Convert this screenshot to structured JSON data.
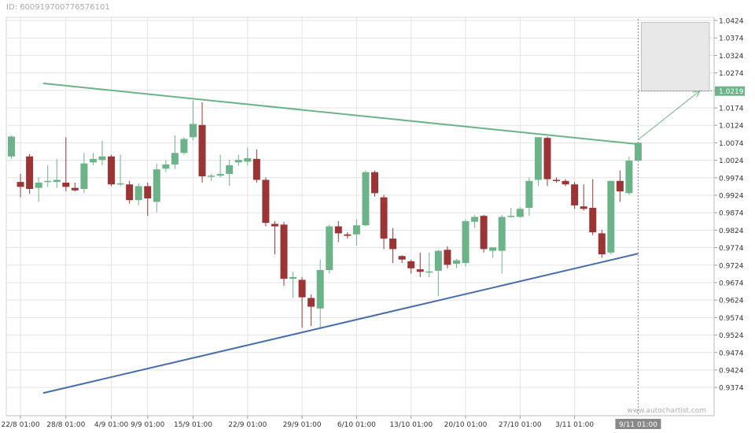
{
  "id_label": "ID: 600919700776576101",
  "watermark": "www.autochartist.com",
  "colors": {
    "up": "#6db38a",
    "down": "#9b3535",
    "resistance": "#6db38a",
    "support": "#4a6fa8",
    "forecast_box": "#e8e8e8",
    "current_price_bg": "#6db38a",
    "date_highlight_bg": "#888888"
  },
  "chart_data": {
    "type": "candlestick",
    "ylim": [
      0.9344,
      1.0424
    ],
    "y_ticks": [
      "1.0424",
      "1.0374",
      "1.0324",
      "1.0274",
      "1.0224",
      "1.0174",
      "1.0124",
      "1.0074",
      "1.0024",
      "0.9974",
      "0.9924",
      "0.9874",
      "0.9824",
      "0.9774",
      "0.9724",
      "0.9674",
      "0.9624",
      "0.9574",
      "0.9524",
      "0.9474",
      "0.9424",
      "0.9374"
    ],
    "x_labels": [
      {
        "label": "22/8 01:00",
        "i": 1
      },
      {
        "label": "28/8 01:00",
        "i": 6
      },
      {
        "label": "4/9 01:00",
        "i": 11
      },
      {
        "label": "9/9 01:00",
        "i": 15
      },
      {
        "label": "15/9 01:00",
        "i": 20
      },
      {
        "label": "22/9 01:00",
        "i": 26
      },
      {
        "label": "29/9 01:00",
        "i": 32
      },
      {
        "label": "6/10 01:00",
        "i": 38
      },
      {
        "label": "13/10 01:00",
        "i": 44
      },
      {
        "label": "20/10 01:00",
        "i": 50
      },
      {
        "label": "27/10 01:00",
        "i": 56
      },
      {
        "label": "3/11 01:00",
        "i": 62
      }
    ],
    "current_date_label": "9/11 01:00",
    "current_price_label": "1.0219",
    "candles": [
      {
        "o": 1.0035,
        "h": 1.0095,
        "l": 1.0028,
        "c": 1.0092
      },
      {
        "o": 0.9962,
        "h": 0.9985,
        "l": 0.9918,
        "c": 0.9948
      },
      {
        "o": 1.0035,
        "h": 1.0042,
        "l": 0.9928,
        "c": 0.9942
      },
      {
        "o": 0.9945,
        "h": 0.9975,
        "l": 0.9905,
        "c": 0.996
      },
      {
        "o": 0.9962,
        "h": 1.001,
        "l": 0.9948,
        "c": 0.9965
      },
      {
        "o": 0.9962,
        "h": 1.0028,
        "l": 0.9945,
        "c": 0.9968
      },
      {
        "o": 0.996,
        "h": 1.009,
        "l": 0.9935,
        "c": 0.9948
      },
      {
        "o": 0.9945,
        "h": 0.996,
        "l": 0.9935,
        "c": 0.9938
      },
      {
        "o": 0.9942,
        "h": 1.0045,
        "l": 0.993,
        "c": 1.0015
      },
      {
        "o": 1.0018,
        "h": 1.0045,
        "l": 1.001,
        "c": 1.0028
      },
      {
        "o": 1.0025,
        "h": 1.008,
        "l": 1.001,
        "c": 1.0035
      },
      {
        "o": 1.0035,
        "h": 1.004,
        "l": 0.995,
        "c": 0.9955
      },
      {
        "o": 0.9955,
        "h": 1.004,
        "l": 0.995,
        "c": 0.9958
      },
      {
        "o": 0.9955,
        "h": 0.9965,
        "l": 0.99,
        "c": 0.991
      },
      {
        "o": 0.991,
        "h": 0.9958,
        "l": 0.9895,
        "c": 0.995
      },
      {
        "o": 0.995,
        "h": 0.996,
        "l": 0.9865,
        "c": 0.9915
      },
      {
        "o": 0.9905,
        "h": 1.0015,
        "l": 0.9875,
        "c": 0.9998
      },
      {
        "o": 1.0,
        "h": 1.0025,
        "l": 0.999,
        "c": 1.0012
      },
      {
        "o": 1.0012,
        "h": 1.0095,
        "l": 1.0,
        "c": 1.0045
      },
      {
        "o": 1.0045,
        "h": 1.009,
        "l": 1.004,
        "c": 1.0085
      },
      {
        "o": 1.009,
        "h": 1.0195,
        "l": 1.008,
        "c": 1.0128
      },
      {
        "o": 1.0125,
        "h": 1.019,
        "l": 0.996,
        "c": 0.9978
      },
      {
        "o": 0.9978,
        "h": 0.9985,
        "l": 0.9965,
        "c": 0.998
      },
      {
        "o": 0.998,
        "h": 1.004,
        "l": 0.9975,
        "c": 0.9985
      },
      {
        "o": 0.9985,
        "h": 1.0025,
        "l": 0.995,
        "c": 1.001
      },
      {
        "o": 1.0018,
        "h": 1.004,
        "l": 1.0008,
        "c": 1.0025
      },
      {
        "o": 1.002,
        "h": 1.006,
        "l": 1.001,
        "c": 1.003
      },
      {
        "o": 1.0028,
        "h": 1.0055,
        "l": 0.996,
        "c": 0.9968
      },
      {
        "o": 0.9968,
        "h": 0.9975,
        "l": 0.9835,
        "c": 0.9845
      },
      {
        "o": 0.9842,
        "h": 0.985,
        "l": 0.9755,
        "c": 0.9835
      },
      {
        "o": 0.984,
        "h": 0.9848,
        "l": 0.9665,
        "c": 0.9685
      },
      {
        "o": 0.9685,
        "h": 0.9705,
        "l": 0.963,
        "c": 0.969
      },
      {
        "o": 0.9682,
        "h": 0.969,
        "l": 0.9545,
        "c": 0.9632
      },
      {
        "o": 0.963,
        "h": 0.964,
        "l": 0.955,
        "c": 0.9605
      },
      {
        "o": 0.96,
        "h": 0.974,
        "l": 0.9545,
        "c": 0.971
      },
      {
        "o": 0.971,
        "h": 0.984,
        "l": 0.97,
        "c": 0.9835
      },
      {
        "o": 0.9835,
        "h": 0.985,
        "l": 0.979,
        "c": 0.9815
      },
      {
        "o": 0.9812,
        "h": 0.9818,
        "l": 0.98,
        "c": 0.9808
      },
      {
        "o": 0.9812,
        "h": 0.9855,
        "l": 0.978,
        "c": 0.9838
      },
      {
        "o": 0.9838,
        "h": 0.9995,
        "l": 0.9835,
        "c": 0.999
      },
      {
        "o": 0.999,
        "h": 0.9995,
        "l": 0.992,
        "c": 0.993
      },
      {
        "o": 0.9918,
        "h": 0.9925,
        "l": 0.977,
        "c": 0.98
      },
      {
        "o": 0.98,
        "h": 0.983,
        "l": 0.973,
        "c": 0.977
      },
      {
        "o": 0.975,
        "h": 0.9752,
        "l": 0.973,
        "c": 0.974
      },
      {
        "o": 0.9735,
        "h": 0.974,
        "l": 0.97,
        "c": 0.9715
      },
      {
        "o": 0.9712,
        "h": 0.976,
        "l": 0.969,
        "c": 0.9705
      },
      {
        "o": 0.9705,
        "h": 0.976,
        "l": 0.969,
        "c": 0.9706
      },
      {
        "o": 0.9708,
        "h": 0.9768,
        "l": 0.9635,
        "c": 0.9765
      },
      {
        "o": 0.9768,
        "h": 0.9778,
        "l": 0.9715,
        "c": 0.9725
      },
      {
        "o": 0.9728,
        "h": 0.9742,
        "l": 0.9715,
        "c": 0.9738
      },
      {
        "o": 0.973,
        "h": 0.9855,
        "l": 0.972,
        "c": 0.985
      },
      {
        "o": 0.9848,
        "h": 0.9868,
        "l": 0.983,
        "c": 0.9862
      },
      {
        "o": 0.9865,
        "h": 0.9868,
        "l": 0.976,
        "c": 0.977
      },
      {
        "o": 0.9765,
        "h": 0.9775,
        "l": 0.9745,
        "c": 0.9775
      },
      {
        "o": 0.9765,
        "h": 0.9868,
        "l": 0.97,
        "c": 0.9862
      },
      {
        "o": 0.9862,
        "h": 0.9888,
        "l": 0.986,
        "c": 0.9865
      },
      {
        "o": 0.9862,
        "h": 0.989,
        "l": 0.986,
        "c": 0.9885
      },
      {
        "o": 0.9888,
        "h": 0.9975,
        "l": 0.9865,
        "c": 0.9965
      },
      {
        "o": 0.9968,
        "h": 1.009,
        "l": 0.995,
        "c": 1.009
      },
      {
        "o": 1.0088,
        "h": 1.0092,
        "l": 0.995,
        "c": 0.997
      },
      {
        "o": 0.9968,
        "h": 0.9975,
        "l": 0.996,
        "c": 0.9965
      },
      {
        "o": 0.9965,
        "h": 0.997,
        "l": 0.995,
        "c": 0.9955
      },
      {
        "o": 0.9955,
        "h": 0.9962,
        "l": 0.9885,
        "c": 0.9895
      },
      {
        "o": 0.9892,
        "h": 0.9955,
        "l": 0.988,
        "c": 0.9885
      },
      {
        "o": 0.9888,
        "h": 0.997,
        "l": 0.981,
        "c": 0.9818
      },
      {
        "o": 0.9815,
        "h": 0.9825,
        "l": 0.9745,
        "c": 0.9755
      },
      {
        "o": 0.976,
        "h": 0.9965,
        "l": 0.9755,
        "c": 0.9965
      },
      {
        "o": 0.9965,
        "h": 0.9995,
        "l": 0.9905,
        "c": 0.9935
      },
      {
        "o": 0.993,
        "h": 1.0035,
        "l": 0.9925,
        "c": 1.0023
      },
      {
        "o": 1.0023,
        "h": 1.0075,
        "l": 1.002,
        "c": 1.0074
      }
    ],
    "lines": [
      {
        "name": "resistance",
        "x1": 3.5,
        "y1": 1.0244,
        "x2": 69,
        "y2": 1.007
      },
      {
        "name": "support",
        "x1": 3.5,
        "y1": 0.9358,
        "x2": 69,
        "y2": 0.9757
      }
    ],
    "forecast": {
      "y_low": 1.0222,
      "y_high": 1.0418,
      "arrow_to": 1.0223
    },
    "grid": true
  }
}
